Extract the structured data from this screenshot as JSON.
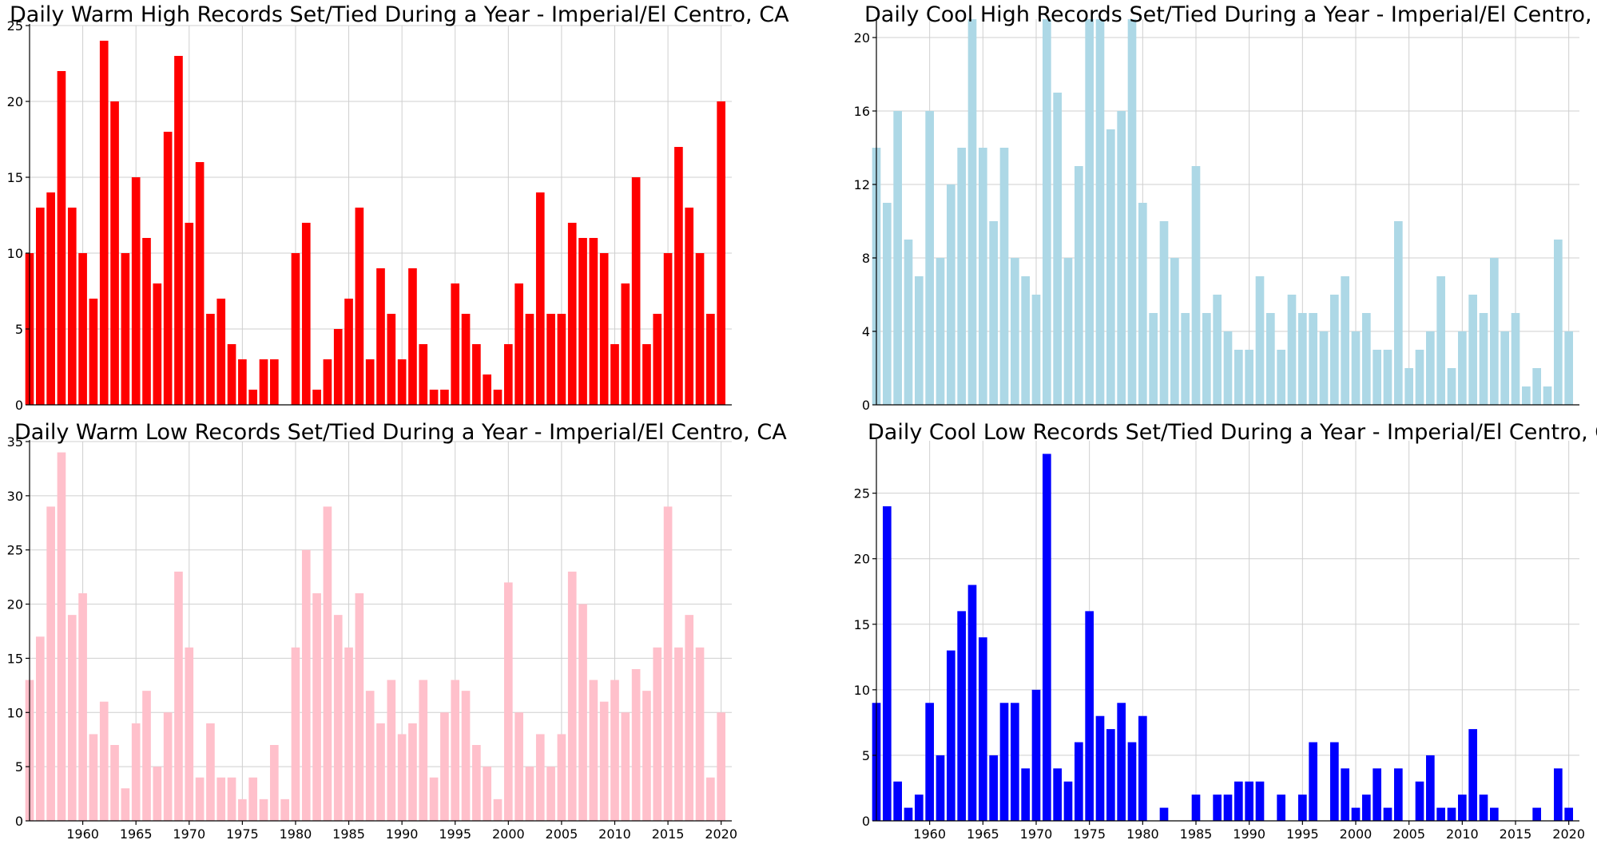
{
  "chart_data": [
    {
      "type": "bar",
      "title": "Daily Warm High Records Set/Tied During a Year - Imperial/El Centro, CA",
      "color": "#ff0000",
      "xlim": [
        1955,
        2021
      ],
      "ylim": [
        0,
        25
      ],
      "yticks": [
        0,
        5,
        10,
        15,
        20,
        25
      ],
      "xticks": [],
      "x": [
        1955,
        1956,
        1957,
        1958,
        1959,
        1960,
        1961,
        1962,
        1963,
        1964,
        1965,
        1966,
        1967,
        1968,
        1969,
        1970,
        1971,
        1972,
        1973,
        1974,
        1975,
        1976,
        1977,
        1978,
        1979,
        1980,
        1981,
        1982,
        1983,
        1984,
        1985,
        1986,
        1987,
        1988,
        1989,
        1990,
        1991,
        1992,
        1993,
        1994,
        1995,
        1996,
        1997,
        1998,
        1999,
        2000,
        2001,
        2002,
        2003,
        2004,
        2005,
        2006,
        2007,
        2008,
        2009,
        2010,
        2011,
        2012,
        2013,
        2014,
        2015,
        2016,
        2017,
        2018,
        2019,
        2020
      ],
      "values": [
        10,
        13,
        14,
        22,
        13,
        10,
        7,
        24,
        20,
        10,
        15,
        11,
        8,
        18,
        23,
        12,
        16,
        6,
        7,
        4,
        3,
        1,
        3,
        3,
        0,
        10,
        12,
        1,
        3,
        5,
        7,
        13,
        3,
        9,
        6,
        3,
        9,
        4,
        1,
        1,
        8,
        6,
        4,
        2,
        1,
        4,
        8,
        6,
        14,
        6,
        6,
        12,
        11,
        11,
        10,
        4,
        8,
        15,
        4,
        6,
        10,
        17,
        13,
        10,
        6,
        20
      ]
    },
    {
      "type": "bar",
      "title": "Daily Cool High Records Set/Tied During a Year - Imperial/El Centro, CA",
      "color": "#add8e6",
      "xlim": [
        1955,
        2021
      ],
      "ylim": [
        0,
        21
      ],
      "yticks": [
        0,
        4,
        8,
        12,
        16,
        20
      ],
      "xticks": [],
      "x": [
        1955,
        1956,
        1957,
        1958,
        1959,
        1960,
        1961,
        1962,
        1963,
        1964,
        1965,
        1966,
        1967,
        1968,
        1969,
        1970,
        1971,
        1972,
        1973,
        1974,
        1975,
        1976,
        1977,
        1978,
        1979,
        1980,
        1981,
        1982,
        1983,
        1984,
        1985,
        1986,
        1987,
        1988,
        1989,
        1990,
        1991,
        1992,
        1993,
        1994,
        1995,
        1996,
        1997,
        1998,
        1999,
        2000,
        2001,
        2002,
        2003,
        2004,
        2005,
        2006,
        2007,
        2008,
        2009,
        2010,
        2011,
        2012,
        2013,
        2014,
        2015,
        2016,
        2017,
        2018,
        2019,
        2020
      ],
      "values": [
        14,
        11,
        16,
        9,
        7,
        16,
        8,
        12,
        14,
        21,
        14,
        10,
        14,
        8,
        7,
        6,
        21,
        17,
        8,
        13,
        21,
        21,
        15,
        16,
        21,
        11,
        5,
        10,
        8,
        5,
        13,
        5,
        6,
        4,
        3,
        3,
        7,
        5,
        3,
        6,
        5,
        5,
        4,
        6,
        7,
        4,
        5,
        3,
        3,
        10,
        2,
        3,
        4,
        7,
        2,
        4,
        6,
        5,
        8,
        4,
        5,
        1,
        2,
        1,
        9,
        4
      ]
    },
    {
      "type": "bar",
      "title": "Daily Warm Low Records Set/Tied During a Year - Imperial/El Centro, CA",
      "color": "#ffc0cb",
      "xlim": [
        1955,
        2021
      ],
      "ylim": [
        0,
        35
      ],
      "yticks": [
        0,
        5,
        10,
        15,
        20,
        25,
        30,
        35
      ],
      "xticks": [
        1960,
        1965,
        1970,
        1975,
        1980,
        1985,
        1990,
        1995,
        2000,
        2005,
        2010,
        2015,
        2020
      ],
      "x": [
        1955,
        1956,
        1957,
        1958,
        1959,
        1960,
        1961,
        1962,
        1963,
        1964,
        1965,
        1966,
        1967,
        1968,
        1969,
        1970,
        1971,
        1972,
        1973,
        1974,
        1975,
        1976,
        1977,
        1978,
        1979,
        1980,
        1981,
        1982,
        1983,
        1984,
        1985,
        1986,
        1987,
        1988,
        1989,
        1990,
        1991,
        1992,
        1993,
        1994,
        1995,
        1996,
        1997,
        1998,
        1999,
        2000,
        2001,
        2002,
        2003,
        2004,
        2005,
        2006,
        2007,
        2008,
        2009,
        2010,
        2011,
        2012,
        2013,
        2014,
        2015,
        2016,
        2017,
        2018,
        2019,
        2020
      ],
      "values": [
        13,
        17,
        29,
        34,
        19,
        21,
        8,
        11,
        7,
        3,
        9,
        12,
        5,
        10,
        23,
        16,
        4,
        9,
        4,
        4,
        2,
        4,
        2,
        7,
        2,
        16,
        25,
        21,
        29,
        19,
        16,
        21,
        12,
        9,
        13,
        8,
        9,
        13,
        4,
        10,
        13,
        12,
        7,
        5,
        2,
        22,
        10,
        5,
        8,
        5,
        8,
        23,
        20,
        13,
        11,
        13,
        10,
        14,
        12,
        16,
        29,
        16,
        19,
        16,
        4,
        10
      ]
    },
    {
      "type": "bar",
      "title": "Daily Cool Low Records Set/Tied During a Year - Imperial/El Centro, CA",
      "color": "#0000ff",
      "xlim": [
        1955,
        2021
      ],
      "ylim": [
        0,
        29
      ],
      "yticks": [
        0,
        5,
        10,
        15,
        20,
        25
      ],
      "xticks": [
        1960,
        1965,
        1970,
        1975,
        1980,
        1985,
        1990,
        1995,
        2000,
        2005,
        2010,
        2015,
        2020
      ],
      "x": [
        1955,
        1956,
        1957,
        1958,
        1959,
        1960,
        1961,
        1962,
        1963,
        1964,
        1965,
        1966,
        1967,
        1968,
        1969,
        1970,
        1971,
        1972,
        1973,
        1974,
        1975,
        1976,
        1977,
        1978,
        1979,
        1980,
        1981,
        1982,
        1983,
        1984,
        1985,
        1986,
        1987,
        1988,
        1989,
        1990,
        1991,
        1992,
        1993,
        1994,
        1995,
        1996,
        1997,
        1998,
        1999,
        2000,
        2001,
        2002,
        2003,
        2004,
        2005,
        2006,
        2007,
        2008,
        2009,
        2010,
        2011,
        2012,
        2013,
        2014,
        2015,
        2016,
        2017,
        2018,
        2019,
        2020
      ],
      "values": [
        9,
        24,
        3,
        1,
        2,
        9,
        5,
        13,
        16,
        18,
        14,
        5,
        9,
        9,
        4,
        10,
        28,
        4,
        3,
        6,
        16,
        8,
        7,
        9,
        6,
        8,
        0,
        1,
        0,
        0,
        2,
        0,
        2,
        2,
        3,
        3,
        3,
        0,
        2,
        0,
        2,
        6,
        0,
        6,
        4,
        1,
        2,
        4,
        1,
        4,
        0,
        3,
        5,
        1,
        1,
        2,
        7,
        2,
        1,
        0,
        0,
        0,
        1,
        0,
        4,
        1
      ]
    }
  ]
}
